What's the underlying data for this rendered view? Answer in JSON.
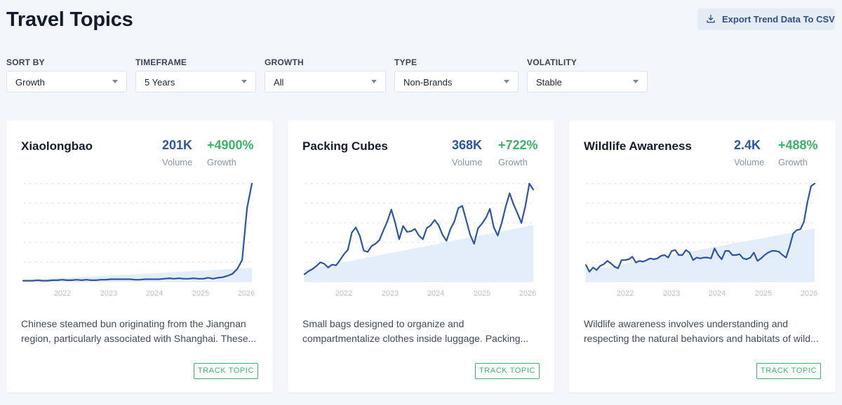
{
  "header": {
    "title": "Travel Topics",
    "export_label": "Export Trend Data To CSV"
  },
  "filters": [
    {
      "label": "SORT BY",
      "value": "Growth"
    },
    {
      "label": "TIMEFRAME",
      "value": "5 Years"
    },
    {
      "label": "GROWTH",
      "value": "All"
    },
    {
      "label": "TYPE",
      "value": "Non-Brands"
    },
    {
      "label": "VOLATILITY",
      "value": "Stable"
    }
  ],
  "cards": [
    {
      "title": "Xiaolongbao",
      "volume": "201K",
      "volume_label": "Volume",
      "growth": "+4900%",
      "growth_label": "Growth",
      "desc_line1": "Chinese steamed bun originating from the Jiangnan",
      "desc_line2": "region, particularly associated with Shanghai. These...",
      "track_label": "TRACK TOPIC"
    },
    {
      "title": "Packing Cubes",
      "volume": "368K",
      "volume_label": "Volume",
      "growth": "+722%",
      "growth_label": "Growth",
      "desc_line1": "Small bags designed to organize and",
      "desc_line2": "compartmentalize clothes inside luggage. Packing...",
      "track_label": "TRACK TOPIC"
    },
    {
      "title": "Wildlife Awareness",
      "volume": "2.4K",
      "volume_label": "Volume",
      "growth": "+488%",
      "growth_label": "Growth",
      "desc_line1": "Wildlife awareness involves understanding and",
      "desc_line2": "respecting the natural behaviors and habitats of wild...",
      "track_label": "TRACK TOPIC"
    }
  ],
  "colors": {
    "line": "#2d55a5",
    "trend_fill": "#e4eefb",
    "growth": "#3db36a",
    "volume": "#2d55a5"
  },
  "chart_data": [
    {
      "type": "line",
      "title": "Xiaolongbao",
      "x_ticks": [
        "2022",
        "2023",
        "2024",
        "2025",
        "2026"
      ],
      "y_relative": [
        1,
        1,
        1,
        1.5,
        1,
        1,
        1.5,
        1.5,
        2,
        1.5,
        1.5,
        2,
        1.5,
        2,
        1.5,
        1.5,
        2,
        2,
        2.5,
        2.5,
        2.5,
        2.5,
        2.5,
        2,
        2,
        2.5,
        2.5,
        2.5,
        2.5,
        3,
        3.5,
        3,
        3.5,
        3,
        3,
        3.5,
        3,
        3,
        4,
        3,
        4,
        4.5,
        6,
        8,
        13,
        22,
        75,
        100
      ],
      "trend_relative": [
        1.5,
        14
      ],
      "grid": true
    },
    {
      "type": "line",
      "title": "Packing Cubes",
      "x_ticks": [
        "2022",
        "2023",
        "2024",
        "2025",
        "2026"
      ],
      "y_relative": [
        10,
        14,
        17,
        21,
        26,
        24,
        19,
        23,
        22,
        29,
        37,
        43,
        66,
        73,
        62,
        42,
        40,
        48,
        51,
        56,
        69,
        81,
        97,
        79,
        57,
        75,
        67,
        68,
        71,
        62,
        57,
        72,
        76,
        83,
        76,
        63,
        55,
        71,
        81,
        99,
        102,
        83,
        63,
        51,
        72,
        78,
        86,
        98,
        73,
        62,
        79,
        101,
        119,
        104,
        92,
        79,
        102,
        132,
        124
      ],
      "trend_relative": [
        16,
        76
      ],
      "grid": true
    },
    {
      "type": "line",
      "title": "Wildlife Awareness",
      "x_ticks": [
        "2022",
        "2023",
        "2024",
        "2025",
        "2026"
      ],
      "y_relative": [
        20,
        12,
        17,
        14,
        19,
        21,
        25,
        22,
        18,
        16,
        26,
        26,
        27,
        30,
        23,
        25,
        24,
        26,
        28,
        27,
        28,
        31,
        32,
        29,
        37,
        38,
        32,
        32,
        38,
        35,
        26,
        29,
        28,
        29,
        29,
        28,
        40,
        32,
        27,
        37,
        37,
        32,
        32,
        33,
        28,
        27,
        29,
        35,
        25,
        28,
        32,
        35,
        37,
        37,
        36,
        32,
        29,
        42,
        58,
        62,
        63,
        72,
        96,
        115,
        118
      ],
      "trend_relative": [
        13,
        64
      ],
      "grid": true
    }
  ]
}
